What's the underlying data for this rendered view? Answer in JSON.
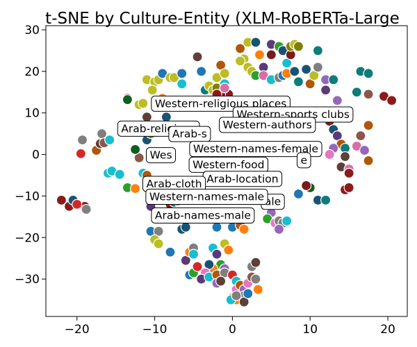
{
  "chart_data": {
    "type": "scatter",
    "title": "t-SNE by Culture-Entity (XLM-RoBERTa-Large",
    "xlabel": "",
    "ylabel": "",
    "xlim": [
      -24,
      22.5
    ],
    "ylim": [
      -39,
      31
    ],
    "xticks": [
      -20,
      -10,
      0,
      10,
      20
    ],
    "yticks": [
      -30,
      -20,
      -10,
      0,
      10,
      20,
      30
    ],
    "xtick_labels": [
      "−20",
      "−10",
      "0",
      "10",
      "20"
    ],
    "ytick_labels": [
      "−30",
      "−20",
      "−10",
      "0",
      "10",
      "20",
      "30"
    ],
    "grid": false,
    "legend": "none",
    "palette": [
      "#1f77b4",
      "#ff7f0e",
      "#2ca02c",
      "#d62728",
      "#9467bd",
      "#8c564b",
      "#e377c2",
      "#7f7f7f",
      "#bcbd22",
      "#17becf",
      "#1a5276",
      "#7b1a1a",
      "#0e7c7b",
      "#5b3a7a",
      "#b0570a",
      "#808000",
      "#d96ea7",
      "#0f5e1d",
      "#5d4037",
      "#8b1a1a"
    ],
    "points": [
      [
        -22,
        -11,
        19
      ],
      [
        -21,
        -12.5,
        19
      ],
      [
        -20.5,
        -11,
        10
      ],
      [
        -19,
        -12.5,
        19
      ],
      [
        -20,
        -12,
        3
      ],
      [
        -18.8,
        -13.2,
        7
      ],
      [
        -19.5,
        0.2,
        3
      ],
      [
        -19.3,
        3.5,
        7
      ],
      [
        -17.5,
        1,
        14
      ],
      [
        -17,
        2.6,
        18
      ],
      [
        -16.8,
        5,
        7
      ],
      [
        -16.5,
        2.8,
        5
      ],
      [
        -15.8,
        3.5,
        9
      ],
      [
        -16,
        -4.5,
        9
      ],
      [
        -15.5,
        -4,
        9
      ],
      [
        -14.5,
        -4.8,
        9
      ],
      [
        -13.5,
        -8,
        2
      ],
      [
        -12.5,
        -8.2,
        1
      ],
      [
        -13.5,
        13.5,
        19
      ],
      [
        -13.5,
        13.2,
        17
      ],
      [
        -12,
        12,
        8
      ],
      [
        -11.5,
        12.3,
        8
      ],
      [
        -11,
        9,
        18
      ],
      [
        -12,
        -0.8,
        5
      ],
      [
        -12.5,
        1.2,
        17
      ],
      [
        -11.5,
        -4.5,
        9
      ],
      [
        -11,
        -5,
        14
      ],
      [
        -11,
        3.5,
        10
      ],
      [
        -10.5,
        5,
        15
      ],
      [
        -10.3,
        5.8,
        4
      ],
      [
        -11,
        18,
        8
      ],
      [
        -10,
        17.5,
        8
      ],
      [
        -10.3,
        15.5,
        8
      ],
      [
        -9.5,
        18,
        8
      ],
      [
        -9,
        19.5,
        0
      ],
      [
        -8,
        18.5,
        8
      ],
      [
        -7.5,
        18.5,
        8
      ],
      [
        -6.5,
        19.5,
        0
      ],
      [
        -6.5,
        17,
        9
      ],
      [
        -9,
        13.5,
        1
      ],
      [
        -8.5,
        9,
        10
      ],
      [
        -8,
        6,
        11
      ],
      [
        -10.5,
        -18.5,
        0
      ],
      [
        -9.5,
        -18.5,
        7
      ],
      [
        -10,
        -20.5,
        8
      ],
      [
        -9.5,
        -21.5,
        8
      ],
      [
        -10.5,
        -12.5,
        13
      ],
      [
        -9.5,
        -10.5,
        0
      ],
      [
        -8,
        -12,
        11
      ],
      [
        -7.5,
        -11.5,
        12
      ],
      [
        -7,
        -11.2,
        4
      ],
      [
        -6.5,
        -18,
        10
      ],
      [
        -6,
        -17.5,
        10
      ],
      [
        -5.5,
        -14.5,
        1
      ],
      [
        -8,
        -23.5,
        0
      ],
      [
        -6,
        -25.5,
        13
      ],
      [
        -5.5,
        -23.5,
        1
      ],
      [
        -5,
        -22.5,
        7
      ],
      [
        -5,
        -24,
        9
      ],
      [
        -5.5,
        -29,
        0
      ],
      [
        -5,
        -28.5,
        2
      ],
      [
        -4.5,
        23.5,
        18
      ],
      [
        -4,
        20,
        0
      ],
      [
        -3.5,
        15.5,
        12
      ],
      [
        -3,
        16.5,
        8
      ],
      [
        -2,
        18.5,
        8
      ],
      [
        -2.5,
        15.5,
        8
      ],
      [
        -2,
        16,
        15
      ],
      [
        -1.5,
        21.5,
        14
      ],
      [
        -1,
        19.5,
        8
      ],
      [
        -1,
        17,
        9
      ],
      [
        -0.5,
        14.5,
        19
      ],
      [
        -1.5,
        14.5,
        11
      ],
      [
        -1,
        16,
        16
      ],
      [
        -2,
        14.5,
        19
      ],
      [
        1,
        25.5,
        14
      ],
      [
        1.5,
        23,
        8
      ],
      [
        2,
        27,
        8
      ],
      [
        3,
        27,
        10
      ],
      [
        3.5,
        24,
        1
      ],
      [
        4,
        21,
        13
      ],
      [
        5,
        24,
        11
      ],
      [
        5,
        26.5,
        13
      ],
      [
        6,
        26,
        2
      ],
      [
        6.5,
        25,
        10
      ],
      [
        7,
        22,
        9
      ],
      [
        7.5,
        24,
        11
      ],
      [
        7.5,
        26,
        15
      ],
      [
        8,
        26.5,
        8
      ],
      [
        8.5,
        26,
        15
      ],
      [
        1,
        22.5,
        8
      ],
      [
        2,
        21,
        8
      ],
      [
        2.5,
        20,
        8
      ],
      [
        3,
        19,
        2
      ],
      [
        4,
        19,
        16
      ],
      [
        5,
        18,
        9
      ],
      [
        6,
        18.5,
        7
      ],
      [
        6.5,
        19,
        0
      ],
      [
        7,
        19.5,
        1
      ],
      [
        8,
        20,
        10
      ],
      [
        8.5,
        17.5,
        12
      ],
      [
        9.5,
        20.5,
        10
      ],
      [
        10,
        17,
        14
      ],
      [
        10.5,
        19,
        8
      ],
      [
        11,
        21,
        7
      ],
      [
        11,
        25,
        12
      ],
      [
        12,
        18,
        4
      ],
      [
        12,
        15.5,
        13
      ],
      [
        13,
        18,
        12
      ],
      [
        13.5,
        13,
        4
      ],
      [
        14,
        10,
        17
      ],
      [
        15,
        9.5,
        3
      ],
      [
        16,
        15,
        12
      ],
      [
        16.5,
        20,
        12
      ],
      [
        17.5,
        19.5,
        12
      ],
      [
        17.5,
        14.5,
        5
      ],
      [
        19.5,
        14,
        19
      ],
      [
        20.5,
        13,
        19
      ],
      [
        12.5,
        8,
        11
      ],
      [
        13,
        6,
        10
      ],
      [
        13.5,
        4.5,
        13
      ],
      [
        14,
        2.5,
        14
      ],
      [
        14.5,
        1.5,
        12
      ],
      [
        13,
        1.5,
        4
      ],
      [
        12.5,
        0,
        6
      ],
      [
        14.5,
        -0.5,
        18
      ],
      [
        14,
        -3,
        18
      ],
      [
        15,
        -3.5,
        16
      ],
      [
        15,
        -4.5,
        19
      ],
      [
        14.5,
        -8.5,
        19
      ],
      [
        15,
        -8,
        19
      ],
      [
        16.5,
        4.5,
        5
      ],
      [
        16,
        2,
        16
      ],
      [
        17,
        1,
        4
      ],
      [
        17.5,
        -1.5,
        14
      ],
      [
        17.5,
        7,
        14
      ],
      [
        11,
        -11,
        10
      ],
      [
        12,
        -11,
        12
      ],
      [
        10,
        -8,
        17
      ],
      [
        9.5,
        -7.5,
        11
      ],
      [
        8.5,
        -9.5,
        0
      ],
      [
        5,
        -14,
        4
      ],
      [
        4.5,
        -15.5,
        2
      ],
      [
        5.5,
        -16.5,
        6
      ],
      [
        6,
        -16,
        7
      ],
      [
        6.5,
        -16.5,
        7
      ],
      [
        7,
        -16,
        9
      ],
      [
        6,
        -18,
        4
      ],
      [
        -1,
        -21.5,
        8
      ],
      [
        -0.5,
        -23,
        1
      ],
      [
        0,
        -17.5,
        0
      ],
      [
        1,
        -17,
        14
      ],
      [
        1.5,
        -18,
        1
      ],
      [
        -2,
        -17.5,
        0
      ],
      [
        -2.5,
        -22.5,
        9
      ],
      [
        -2,
        -24,
        13
      ],
      [
        -1.5,
        -26.5,
        2
      ],
      [
        -1,
        -27.5,
        4
      ],
      [
        -2.5,
        -27.5,
        1
      ],
      [
        -3,
        -26.5,
        10
      ],
      [
        -3.5,
        -28.5,
        6
      ],
      [
        -4.5,
        -27,
        3
      ],
      [
        -4,
        -30,
        13
      ],
      [
        -3,
        -29.5,
        9
      ],
      [
        -2,
        -29,
        14
      ],
      [
        -2,
        -31,
        4
      ],
      [
        -1,
        -28.5,
        7
      ],
      [
        -1.5,
        -30.5,
        18
      ],
      [
        0,
        -29,
        3
      ],
      [
        0.5,
        -30.5,
        9
      ],
      [
        0.5,
        -32.5,
        6
      ],
      [
        1,
        -31.5,
        14
      ],
      [
        1.5,
        -32.5,
        4
      ],
      [
        1.5,
        -34,
        7
      ],
      [
        2,
        -31,
        6
      ],
      [
        2.5,
        -29.5,
        5
      ],
      [
        2.5,
        -27,
        7
      ],
      [
        3,
        -26,
        18
      ],
      [
        3,
        -30,
        7
      ],
      [
        0,
        -34.5,
        1
      ],
      [
        0.5,
        -35,
        1
      ],
      [
        -0.2,
        -35,
        9
      ],
      [
        0.5,
        -34,
        7
      ],
      [
        1.5,
        -35.5,
        18
      ],
      [
        2,
        -33.5,
        0
      ],
      [
        3.3,
        -32.5,
        1
      ]
    ],
    "annotations": [
      {
        "text": "Western-religious places",
        "x": -1.5,
        "y": 12.3
      },
      {
        "text": "Western-sports clubs",
        "x": 7.8,
        "y": 9.7
      },
      {
        "text": "Western-authors",
        "x": 4.5,
        "y": 7.2
      },
      {
        "text": "Arab-religious",
        "x": -9.5,
        "y": 6.3
      },
      {
        "text": "Arab-s",
        "x": -5.5,
        "y": 5.0
      },
      {
        "text": "Western-names-female",
        "x": 3.0,
        "y": 1.4
      },
      {
        "text": "Wes",
        "x": -9.2,
        "y": -0.1
      },
      {
        "text": "e",
        "x": 9.2,
        "y": -1.3
      },
      {
        "text": "Western-food",
        "x": -0.5,
        "y": -2.4
      },
      {
        "text": "Arab-location",
        "x": 1.3,
        "y": -5.8
      },
      {
        "text": "Arab-cloth",
        "x": -7.5,
        "y": -7.0
      },
      {
        "text": "ale",
        "x": 5.2,
        "y": -11.3
      },
      {
        "text": "Western-names-male",
        "x": -3.3,
        "y": -10.1
      },
      {
        "text": "Arab-names-male",
        "x": -3.8,
        "y": -14.6
      }
    ]
  }
}
